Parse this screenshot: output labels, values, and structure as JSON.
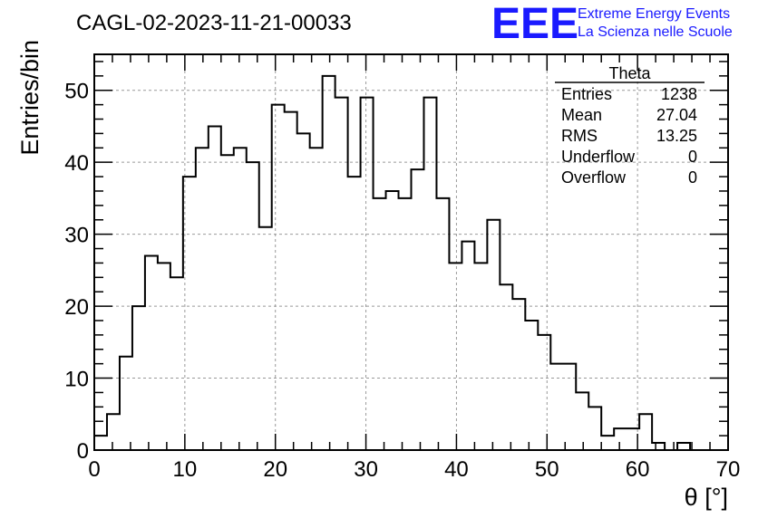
{
  "chart_data": {
    "type": "bar",
    "histogram": true,
    "title": "CAGL-02-2023-11-21-00033",
    "xlabel": "θ [°]",
    "ylabel": "Entries/bin",
    "xlim": [
      0,
      70
    ],
    "ylim": [
      0,
      55
    ],
    "grid": true,
    "bin_width": 1.4,
    "x_ticks": [
      0,
      10,
      20,
      30,
      40,
      50,
      60,
      70
    ],
    "y_ticks": [
      0,
      10,
      20,
      30,
      40,
      50
    ],
    "values": [
      2,
      5,
      13,
      20,
      27,
      26,
      24,
      38,
      42,
      45,
      41,
      42,
      40,
      31,
      48,
      47,
      44,
      42,
      52,
      49,
      38,
      49,
      35,
      36,
      35,
      39,
      49,
      35,
      26,
      29,
      26,
      32,
      23,
      21,
      18,
      16,
      12,
      12,
      8,
      6,
      2,
      3,
      3,
      5,
      1,
      0,
      1,
      0,
      0,
      0
    ],
    "stats_box": {
      "title": "Theta",
      "placement": "top-right",
      "rows": [
        {
          "label": "Entries",
          "value": "1238"
        },
        {
          "label": "Mean",
          "value": "27.04"
        },
        {
          "label": "RMS",
          "value": "13.25"
        },
        {
          "label": "Underflow",
          "value": "0"
        },
        {
          "label": "Overflow",
          "value": "0"
        }
      ]
    }
  },
  "logo": {
    "mark": "EEE",
    "line1": "Extreme Energy Events",
    "line2": "La Scienza nelle Scuole",
    "color": "#1a1aff"
  },
  "colors": {
    "histogram_line": "#000000",
    "grid": "#999999",
    "frame": "#000000"
  }
}
